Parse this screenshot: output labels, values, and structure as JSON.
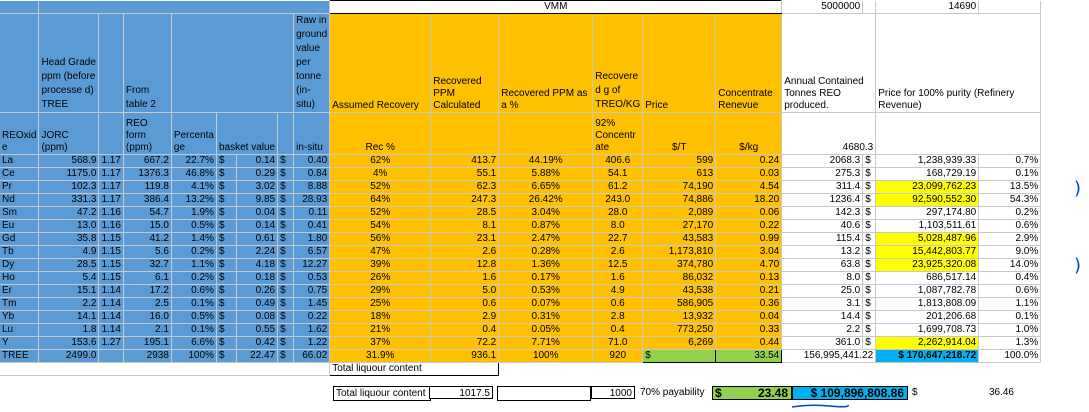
{
  "top": {
    "vmm_label": "VMM",
    "value_5000000": "5000000",
    "value_14690": "14690"
  },
  "headers": {
    "head_grade": "Head Grade ppm (before processe d) TREE",
    "from_table": "From table 2",
    "raw_inground": "Raw in ground value per tonne (in-situ)",
    "assumed_recovery": "Assumed Recovery",
    "recovered_ppm_calc": "Recovered PPM Calculated",
    "recovered_ppm_pct": "Recovered PPM as a %",
    "recovered_g": "Recovere d g of TREO/KG",
    "price": "Price",
    "concentrate_revenue": "Concentrate Renevue",
    "annual_contained": "Annual Contained Tonnes REO produced.",
    "price_100": "Price for 100% purity (Refinery Revenue)"
  },
  "subheaders": {
    "reoxide": "REOxid e",
    "jorc": "JORC (ppm)",
    "reo_form": "REO form (ppm)",
    "percentage": "Percenta ge",
    "basket_value": "basket value",
    "in_situ": "in-situ",
    "rec_pct": "Rec %",
    "concentrate": "92% Concentr ate",
    "per_t": "$/T",
    "per_kg": "$/kg",
    "total_annual": "4680.3"
  },
  "rows": [
    {
      "el": "La",
      "jorc": "568.9",
      "f": "1.17",
      "reo": "667.2",
      "pct": "22.7%",
      "d1": "$",
      "bv": "0.14",
      "d2": "$",
      "ins": "0.40",
      "rec": "62%",
      "calc": "413.7",
      "asp": "44.19%",
      "g": "406.6",
      "pt": "599",
      "pkg": "0.24",
      "ann": "2068.3",
      "d3": "$",
      "ref": "1,238,939.33",
      "share": "0.7%",
      "hl": false
    },
    {
      "el": "Ce",
      "jorc": "1175.0",
      "f": "1.17",
      "reo": "1376.3",
      "pct": "46.8%",
      "d1": "$",
      "bv": "0.29",
      "d2": "$",
      "ins": "0.84",
      "rec": "4%",
      "calc": "55.1",
      "asp": "5.88%",
      "g": "54.1",
      "pt": "613",
      "pkg": "0.03",
      "ann": "275.3",
      "d3": "$",
      "ref": "168,729.19",
      "share": "0.1%",
      "hl": false
    },
    {
      "el": "Pr",
      "jorc": "102.3",
      "f": "1.17",
      "reo": "119.8",
      "pct": "4.1%",
      "d1": "$",
      "bv": "3.02",
      "d2": "$",
      "ins": "8.88",
      "rec": "52%",
      "calc": "62.3",
      "asp": "6.65%",
      "g": "61.2",
      "pt": "74,190",
      "pkg": "4.54",
      "ann": "311.4",
      "d3": "$",
      "ref": "23,099,762.23",
      "share": "13.5%",
      "hl": true
    },
    {
      "el": "Nd",
      "jorc": "331.3",
      "f": "1.17",
      "reo": "386.4",
      "pct": "13.2%",
      "d1": "$",
      "bv": "9.85",
      "d2": "$",
      "ins": "28.93",
      "rec": "64%",
      "calc": "247.3",
      "asp": "26.42%",
      "g": "243.0",
      "pt": "74,886",
      "pkg": "18.20",
      "ann": "1236.4",
      "d3": "$",
      "ref": "92,590,552.30",
      "share": "54.3%",
      "hl": true
    },
    {
      "el": "Sm",
      "jorc": "47.2",
      "f": "1.16",
      "reo": "54.7",
      "pct": "1.9%",
      "d1": "$",
      "bv": "0.04",
      "d2": "$",
      "ins": "0.11",
      "rec": "52%",
      "calc": "28.5",
      "asp": "3.04%",
      "g": "28.0",
      "pt": "2,089",
      "pkg": "0.06",
      "ann": "142.3",
      "d3": "$",
      "ref": "297,174.80",
      "share": "0.2%",
      "hl": false
    },
    {
      "el": "Eu",
      "jorc": "13.0",
      "f": "1.16",
      "reo": "15.0",
      "pct": "0.5%",
      "d1": "$",
      "bv": "0.14",
      "d2": "$",
      "ins": "0.41",
      "rec": "54%",
      "calc": "8.1",
      "asp": "0.87%",
      "g": "8.0",
      "pt": "27,170",
      "pkg": "0.22",
      "ann": "40.6",
      "d3": "$",
      "ref": "1,103,511.61",
      "share": "0.6%",
      "hl": false
    },
    {
      "el": "Gd",
      "jorc": "35.8",
      "f": "1.15",
      "reo": "41.2",
      "pct": "1.4%",
      "d1": "$",
      "bv": "0.61",
      "d2": "$",
      "ins": "1.80",
      "rec": "56%",
      "calc": "23.1",
      "asp": "2.47%",
      "g": "22.7",
      "pt": "43,583",
      "pkg": "0.99",
      "ann": "115.4",
      "d3": "$",
      "ref": "5,028,487.96",
      "share": "2.9%",
      "hl": true
    },
    {
      "el": "Tb",
      "jorc": "4.9",
      "f": "1.15",
      "reo": "5.6",
      "pct": "0.2%",
      "d1": "$",
      "bv": "2.24",
      "d2": "$",
      "ins": "6.57",
      "rec": "47%",
      "calc": "2.6",
      "asp": "0.28%",
      "g": "2.6",
      "pt": "1,173,810",
      "pkg": "3.04",
      "ann": "13.2",
      "d3": "$",
      "ref": "15,442,803.77",
      "share": "9.0%",
      "hl": true
    },
    {
      "el": "Dy",
      "jorc": "28.5",
      "f": "1.15",
      "reo": "32.7",
      "pct": "1.1%",
      "d1": "$",
      "bv": "4.18",
      "d2": "$",
      "ins": "12.27",
      "rec": "39%",
      "calc": "12.8",
      "asp": "1.36%",
      "g": "12.5",
      "pt": "374,780",
      "pkg": "4.70",
      "ann": "63.8",
      "d3": "$",
      "ref": "23,925,320.08",
      "share": "14.0%",
      "hl": true
    },
    {
      "el": "Ho",
      "jorc": "5.4",
      "f": "1.15",
      "reo": "6.1",
      "pct": "0.2%",
      "d1": "$",
      "bv": "0.18",
      "d2": "$",
      "ins": "0.53",
      "rec": "26%",
      "calc": "1.6",
      "asp": "0.17%",
      "g": "1.6",
      "pt": "86,032",
      "pkg": "0.13",
      "ann": "8.0",
      "d3": "$",
      "ref": "686,517.14",
      "share": "0.4%",
      "hl": false
    },
    {
      "el": "Er",
      "jorc": "15.1",
      "f": "1.14",
      "reo": "17.2",
      "pct": "0.6%",
      "d1": "$",
      "bv": "0.26",
      "d2": "$",
      "ins": "0.75",
      "rec": "29%",
      "calc": "5.0",
      "asp": "0.53%",
      "g": "4.9",
      "pt": "43,538",
      "pkg": "0.21",
      "ann": "25.0",
      "d3": "$",
      "ref": "1,087,782.78",
      "share": "0.6%",
      "hl": false
    },
    {
      "el": "Tm",
      "jorc": "2.2",
      "f": "1.14",
      "reo": "2.5",
      "pct": "0.1%",
      "d1": "$",
      "bv": "0.49",
      "d2": "$",
      "ins": "1.45",
      "rec": "25%",
      "calc": "0.6",
      "asp": "0.07%",
      "g": "0.6",
      "pt": "586,905",
      "pkg": "0.36",
      "ann": "3.1",
      "d3": "$",
      "ref": "1,813,808.09",
      "share": "1.1%",
      "hl": false
    },
    {
      "el": "Yb",
      "jorc": "14.1",
      "f": "1.14",
      "reo": "16.0",
      "pct": "0.5%",
      "d1": "$",
      "bv": "0.08",
      "d2": "$",
      "ins": "0.22",
      "rec": "18%",
      "calc": "2.9",
      "asp": "0.31%",
      "g": "2.8",
      "pt": "13,932",
      "pkg": "0.04",
      "ann": "14.4",
      "d3": "$",
      "ref": "201,206.68",
      "share": "0.1%",
      "hl": false
    },
    {
      "el": "Lu",
      "jorc": "1.8",
      "f": "1.14",
      "reo": "2.1",
      "pct": "0.1%",
      "d1": "$",
      "bv": "0.55",
      "d2": "$",
      "ins": "1.62",
      "rec": "21%",
      "calc": "0.4",
      "asp": "0.05%",
      "g": "0.4",
      "pt": "773,250",
      "pkg": "0.33",
      "ann": "2.2",
      "d3": "$",
      "ref": "1,699,708.73",
      "share": "1.0%",
      "hl": false
    },
    {
      "el": "Y",
      "jorc": "153.6",
      "f": "1.27",
      "reo": "195.1",
      "pct": "6.6%",
      "d1": "$",
      "bv": "0.42",
      "d2": "$",
      "ins": "1.22",
      "rec": "37%",
      "calc": "72.2",
      "asp": "7.71%",
      "g": "71.0",
      "pt": "6,269",
      "pkg": "0.44",
      "ann": "361.0",
      "d3": "$",
      "ref": "2,262,914.04",
      "share": "1.3%",
      "hl": true
    }
  ],
  "tree": {
    "el": "TREE",
    "jorc": "2499.0",
    "reo": "2938",
    "pct": "100%",
    "d1": "$",
    "bv": "22.47",
    "d2": "$",
    "ins": "66.02",
    "rec": "31.9%",
    "calc": "936.1",
    "asp": "100%",
    "g": "920",
    "d4": "$",
    "pkg": "33.54",
    "d5": "$",
    "ann": "156,995,441.22",
    "ref": "$ 170,647,218.72",
    "share": "100.0%"
  },
  "bottom": {
    "total_liquor": "Total liquour content",
    "total_liquor_val": "1017.5",
    "val_1000": "1000",
    "payability": "70% payability",
    "d_green": "$",
    "green_val": "23.48",
    "cyan_val": "$ 109,896,808.86",
    "d_last": "$",
    "last_val": "36.46"
  }
}
